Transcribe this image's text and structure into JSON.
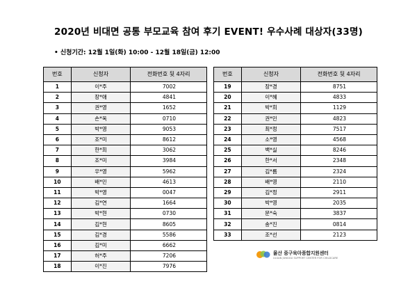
{
  "title": "2020년 비대면 공통 부모교육 참여 후기 EVENT! 우수사례 대상자(33명)",
  "period": "• 신청기간: 12월 1일(화) 10:00 - 12월 18일(금) 12:00",
  "headers": {
    "no": "번호",
    "name": "신청자",
    "tel": "전화번호 뒷 4자리"
  },
  "left_rows": [
    {
      "no": "1",
      "name": "이*주",
      "tel": "7002"
    },
    {
      "no": "2",
      "name": "장*애",
      "tel": "4841"
    },
    {
      "no": "3",
      "name": "권*영",
      "tel": "1652"
    },
    {
      "no": "4",
      "name": "손*옥",
      "tel": "0710"
    },
    {
      "no": "5",
      "name": "박*영",
      "tel": "9053"
    },
    {
      "no": "6",
      "name": "조*미",
      "tel": "8612"
    },
    {
      "no": "7",
      "name": "한*희",
      "tel": "3062"
    },
    {
      "no": "8",
      "name": "조*미",
      "tel": "3984"
    },
    {
      "no": "9",
      "name": "우*영",
      "tel": "5962"
    },
    {
      "no": "10",
      "name": "배*민",
      "tel": "4613"
    },
    {
      "no": "11",
      "name": "박*영",
      "tel": "0047"
    },
    {
      "no": "12",
      "name": "김*연",
      "tel": "1664"
    },
    {
      "no": "13",
      "name": "박*현",
      "tel": "0730"
    },
    {
      "no": "14",
      "name": "김*현",
      "tel": "8605"
    },
    {
      "no": "15",
      "name": "김*경",
      "tel": "5586"
    },
    {
      "no": "16",
      "name": "김*미",
      "tel": "6662"
    },
    {
      "no": "17",
      "name": "허*주",
      "tel": "7206"
    },
    {
      "no": "18",
      "name": "이*진",
      "tel": "7976"
    }
  ],
  "right_rows": [
    {
      "no": "19",
      "name": "장*경",
      "tel": "8751"
    },
    {
      "no": "20",
      "name": "이*혜",
      "tel": "4833"
    },
    {
      "no": "21",
      "name": "박*희",
      "tel": "1129"
    },
    {
      "no": "22",
      "name": "권*민",
      "tel": "4823"
    },
    {
      "no": "23",
      "name": "최*정",
      "tel": "7517"
    },
    {
      "no": "24",
      "name": "소*영",
      "tel": "4568"
    },
    {
      "no": "25",
      "name": "백*실",
      "tel": "8246"
    },
    {
      "no": "26",
      "name": "한*서",
      "tel": "2348"
    },
    {
      "no": "27",
      "name": "김*름",
      "tel": "2324"
    },
    {
      "no": "28",
      "name": "배*영",
      "tel": "2110"
    },
    {
      "no": "29",
      "name": "김*정",
      "tel": "2911"
    },
    {
      "no": "30",
      "name": "박*영",
      "tel": "2035"
    },
    {
      "no": "31",
      "name": "문*숙",
      "tel": "3837"
    },
    {
      "no": "32",
      "name": "송*진",
      "tel": "0814"
    },
    {
      "no": "33",
      "name": "조*선",
      "tel": "2123"
    }
  ],
  "logo": {
    "name": "울산 중구육아종합지원센터",
    "subtitle": "ULSAN JUNGGU SUPPORT CENTER FOR CHILDCARE",
    "colors": {
      "orange": "#f39c12",
      "green": "#8bc34a",
      "blue": "#3f7fd1"
    }
  }
}
